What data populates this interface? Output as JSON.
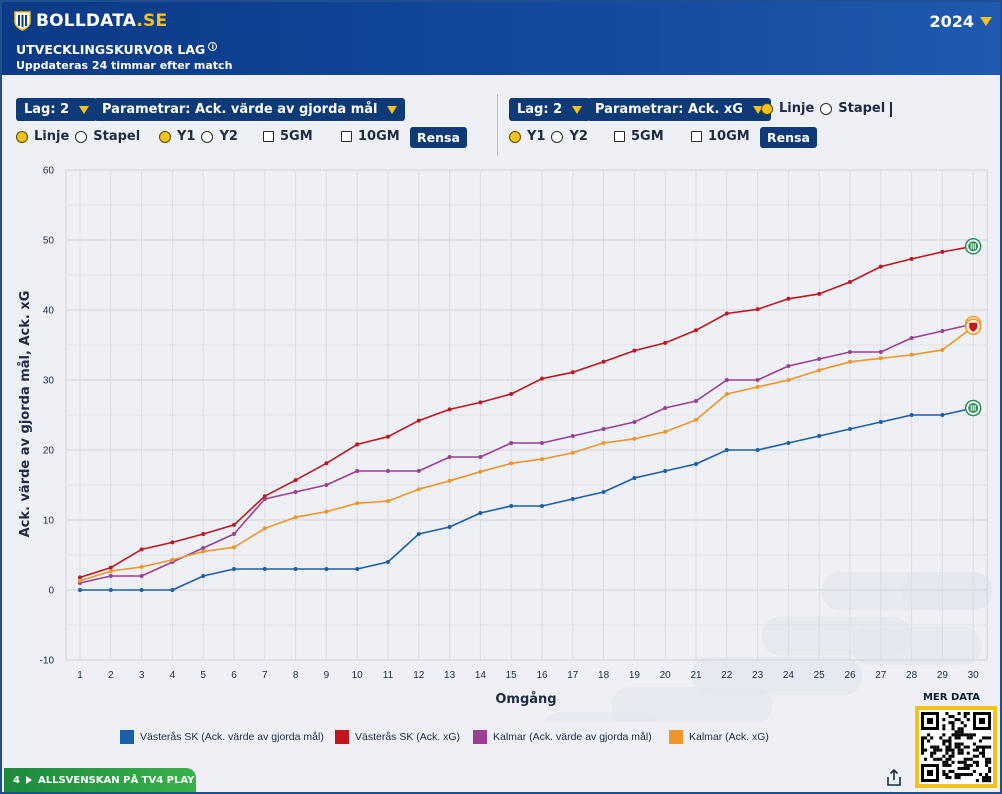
{
  "header": {
    "logo_main": "BOLLDATA",
    "logo_tld": ".SE",
    "year": "2024",
    "title": "UTVECKLINGSKURVOR LAG",
    "info_glyph": "i",
    "subtitle": "Uppdateras 24 timmar efter match"
  },
  "controls_left": {
    "lag_label": "Lag: 2",
    "param_label": "Parametrar: Ack. värde av gjorda mål",
    "linje": "Linje",
    "stapel": "Stapel",
    "y1": "Y1",
    "y2": "Y2",
    "gm5": "5GM",
    "gm10": "10GM",
    "rensa": "Rensa",
    "selected_type": "Linje",
    "selected_axis": "Y1"
  },
  "controls_right": {
    "lag_label": "Lag: 2",
    "param_label": "Parametrar: Ack. xG",
    "linje": "Linje",
    "stapel": "Stapel",
    "y1": "Y1",
    "y2": "Y2",
    "gm5": "5GM",
    "gm10": "10GM",
    "rensa": "Rensa",
    "selected_type": "Linje",
    "selected_axis": "Y1"
  },
  "colors": {
    "header_bg": "#0b3a86",
    "accent": "#f3c21b",
    "button_bg": "#0e3a78",
    "grid": "#d4d8df"
  },
  "chart_data": {
    "type": "line",
    "xlabel": "Omgång",
    "ylabel": "Ack. värde av gjorda mål, Ack. xG",
    "ylim": [
      -10,
      60
    ],
    "yticks": [
      -10,
      0,
      10,
      20,
      30,
      40,
      50,
      60
    ],
    "grid": true,
    "legend_position": "bottom",
    "x": [
      1,
      2,
      3,
      4,
      5,
      6,
      7,
      8,
      9,
      10,
      11,
      12,
      13,
      14,
      15,
      16,
      17,
      18,
      19,
      20,
      21,
      22,
      23,
      24,
      25,
      26,
      27,
      28,
      29,
      30
    ],
    "series": [
      {
        "name": "Västerås SK (Ack. värde av gjorda mål)",
        "color": "#1b5fa8",
        "values": [
          0,
          0,
          0,
          0,
          2,
          3,
          3,
          3,
          3,
          3,
          4,
          8,
          9,
          11,
          12,
          12,
          13,
          14,
          16,
          17,
          18,
          20,
          20,
          21,
          22,
          23,
          24,
          25,
          25,
          26
        ],
        "end_icon": "hammarby-badge-icon"
      },
      {
        "name": "Västerås SK (Ack. xG)",
        "color": "#c0161e",
        "values": [
          1.8,
          3.2,
          5.8,
          6.8,
          8.0,
          9.3,
          13.4,
          15.7,
          18.1,
          20.8,
          21.9,
          24.2,
          25.8,
          26.8,
          28.0,
          30.2,
          31.1,
          32.6,
          34.2,
          35.3,
          37.1,
          39.5,
          40.1,
          41.6,
          42.3,
          44.0,
          46.2,
          47.3,
          48.3,
          49.1
        ],
        "end_icon": "hammarby-badge-icon"
      },
      {
        "name": "Kalmar (Ack. värde av gjorda mål)",
        "color": "#9b3f95",
        "values": [
          1,
          2,
          2,
          4,
          6,
          8,
          13,
          14,
          15,
          17,
          17,
          17,
          19,
          19,
          21,
          21,
          22,
          23,
          24,
          26,
          27,
          30,
          30,
          32,
          33,
          34,
          34,
          36,
          37,
          38
        ],
        "end_icon": "kalmar-badge-icon"
      },
      {
        "name": "Kalmar (Ack. xG)",
        "color": "#f0952a",
        "values": [
          1.3,
          2.7,
          3.3,
          4.3,
          5.5,
          6.1,
          8.8,
          10.4,
          11.2,
          12.4,
          12.7,
          14.4,
          15.6,
          16.9,
          18.1,
          18.7,
          19.6,
          21.0,
          21.6,
          22.6,
          24.3,
          28.0,
          29.0,
          30.0,
          31.4,
          32.6,
          33.1,
          33.6,
          34.3,
          37.6
        ],
        "end_icon": "kalmar-badge-icon"
      }
    ]
  },
  "footer": {
    "mer_data": "MER DATA",
    "tv4_number": "4",
    "tv4_text": "ALLSVENSKAN PÅ TV4 PLAY"
  }
}
